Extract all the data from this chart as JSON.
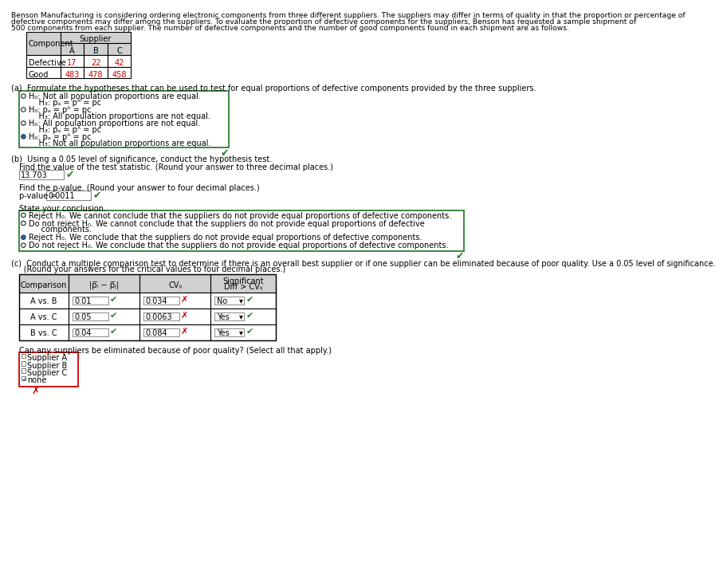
{
  "intro_line1": "Benson Manufacturing is considering ordering electronic components from three different suppliers. The suppliers may differ in terms of quality in that the proportion or percentage of",
  "intro_line2": "defective components may differ among the suppliers. To evaluate the proportion of defective components for the suppliers, Benson has requested a sample shipment of",
  "intro_line3": "500 components from each supplier. The number of defective components and the number of good components found in each shipment are as follows.",
  "table1_defective": [
    "17",
    "22",
    "42"
  ],
  "table1_good": [
    "483",
    "478",
    "458"
  ],
  "part_a_label": "(a)  Formulate the hypotheses that can be used to test for equal proportions of defective components provided by the three suppliers.",
  "options_a_line1": [
    "H₀: Not all population proportions are equal.",
    "H₀: pₐ = pᴬ = pᴄ",
    "H₀: All population proportions are not equal.",
    "H₀: pₐ = pᴬ = pᴄ"
  ],
  "options_a_line2": [
    "    H₃: pₐ = pᴬ = pᴄ",
    "    H₃: All population proportions are not equal.",
    "    H₃: pₐ = pᴬ = pᴄ",
    "    H₃: Not all population proportions are equal."
  ],
  "options_a_selected": [
    false,
    false,
    false,
    true
  ],
  "part_b_label": "(b)  Using a 0.05 level of significance, conduct the hypothesis test.",
  "find_stat_label": "Find the value of the test statistic. (Round your answer to three decimal places.)",
  "stat_value": "13.703",
  "find_p_label": "Find the p-value. (Round your answer to four decimal places.)",
  "p_value": "0.0011",
  "conclusion_label": "State your conclusion.",
  "conclusion_texts": [
    "Reject H₀. We cannot conclude that the suppliers do not provide equal proportions of defective components.",
    "Do not reject H₀. We cannot conclude that the suppliers do not provide equal proportions of defective",
    "     components.",
    "Reject H₀. We conclude that the suppliers do not provide equal proportions of defective components.",
    "Do not reject H₀. We conclude that the suppliers do not provide equal proportions of defective components."
  ],
  "conclusion_selected": [
    false,
    false,
    false,
    true,
    false
  ],
  "part_c_line1": "(c)  Conduct a multiple comparison test to determine if there is an overall best supplier or if one supplier can be eliminated because of poor quality. Use a 0.05 level of significance.",
  "part_c_line2": "     (Round your answers for the critical values to four decimal places.)",
  "comparisons": [
    "A vs. B",
    "A vs. C",
    "B vs. C"
  ],
  "diff_values": [
    "0.01",
    "0.05",
    "0.04"
  ],
  "cv_values": [
    "0.034",
    "0.0063",
    "0.084"
  ],
  "sig_values": [
    "No",
    "Yes",
    "Yes"
  ],
  "can_elim_label": "Can any suppliers be eliminated because of poor quality? (Select all that apply.)",
  "elim_options": [
    "Supplier A",
    "Supplier B",
    "Supplier C",
    "none"
  ],
  "elim_checked": [
    false,
    false,
    false,
    true
  ],
  "bg_color": "#ffffff",
  "green_border": "#2e7d32",
  "red_border": "#cc0000",
  "table_hdr_bg": "#d0d0d0",
  "radio_fill": "#1a5ca8",
  "text_color": "#000000",
  "red_val": "#cc0000",
  "green_chk": "#2e7d32",
  "gray_input": "#888888"
}
